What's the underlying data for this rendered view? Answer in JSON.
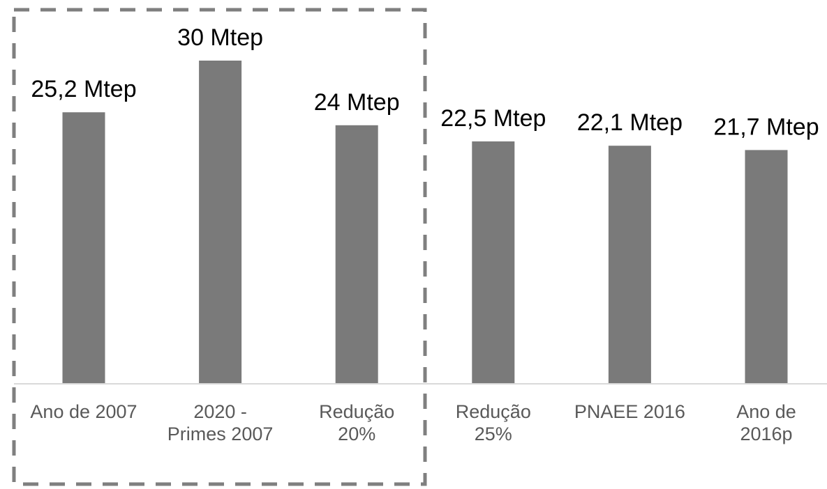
{
  "chart_data": {
    "type": "bar",
    "categories": [
      [
        "Ano de 2007"
      ],
      [
        "2020 -",
        "Primes 2007"
      ],
      [
        "Redução",
        "20%"
      ],
      [
        "Redução",
        "25%"
      ],
      [
        "PNAEE 2016"
      ],
      [
        "Ano de",
        "2016p"
      ]
    ],
    "values": [
      25.2,
      30,
      24,
      22.5,
      22.1,
      21.7
    ],
    "data_labels": [
      "25,2 Mtep",
      "30 Mtep",
      "24 Mtep",
      "22,5 Mtep",
      "22,1 Mtep",
      "21,7 Mtep"
    ],
    "unit": "Mtep",
    "ylim": [
      0,
      30
    ],
    "grid": false,
    "legend": "none",
    "highlight_group": {
      "style": "dashed-box",
      "categories_included": [
        0,
        1,
        2
      ]
    },
    "colors": {
      "bar": "#7a7a7a",
      "axis": "#d9d9d9",
      "highlight_box": "#7f7f7f",
      "tick_text": "#595959",
      "data_label_text": "#000000"
    }
  }
}
